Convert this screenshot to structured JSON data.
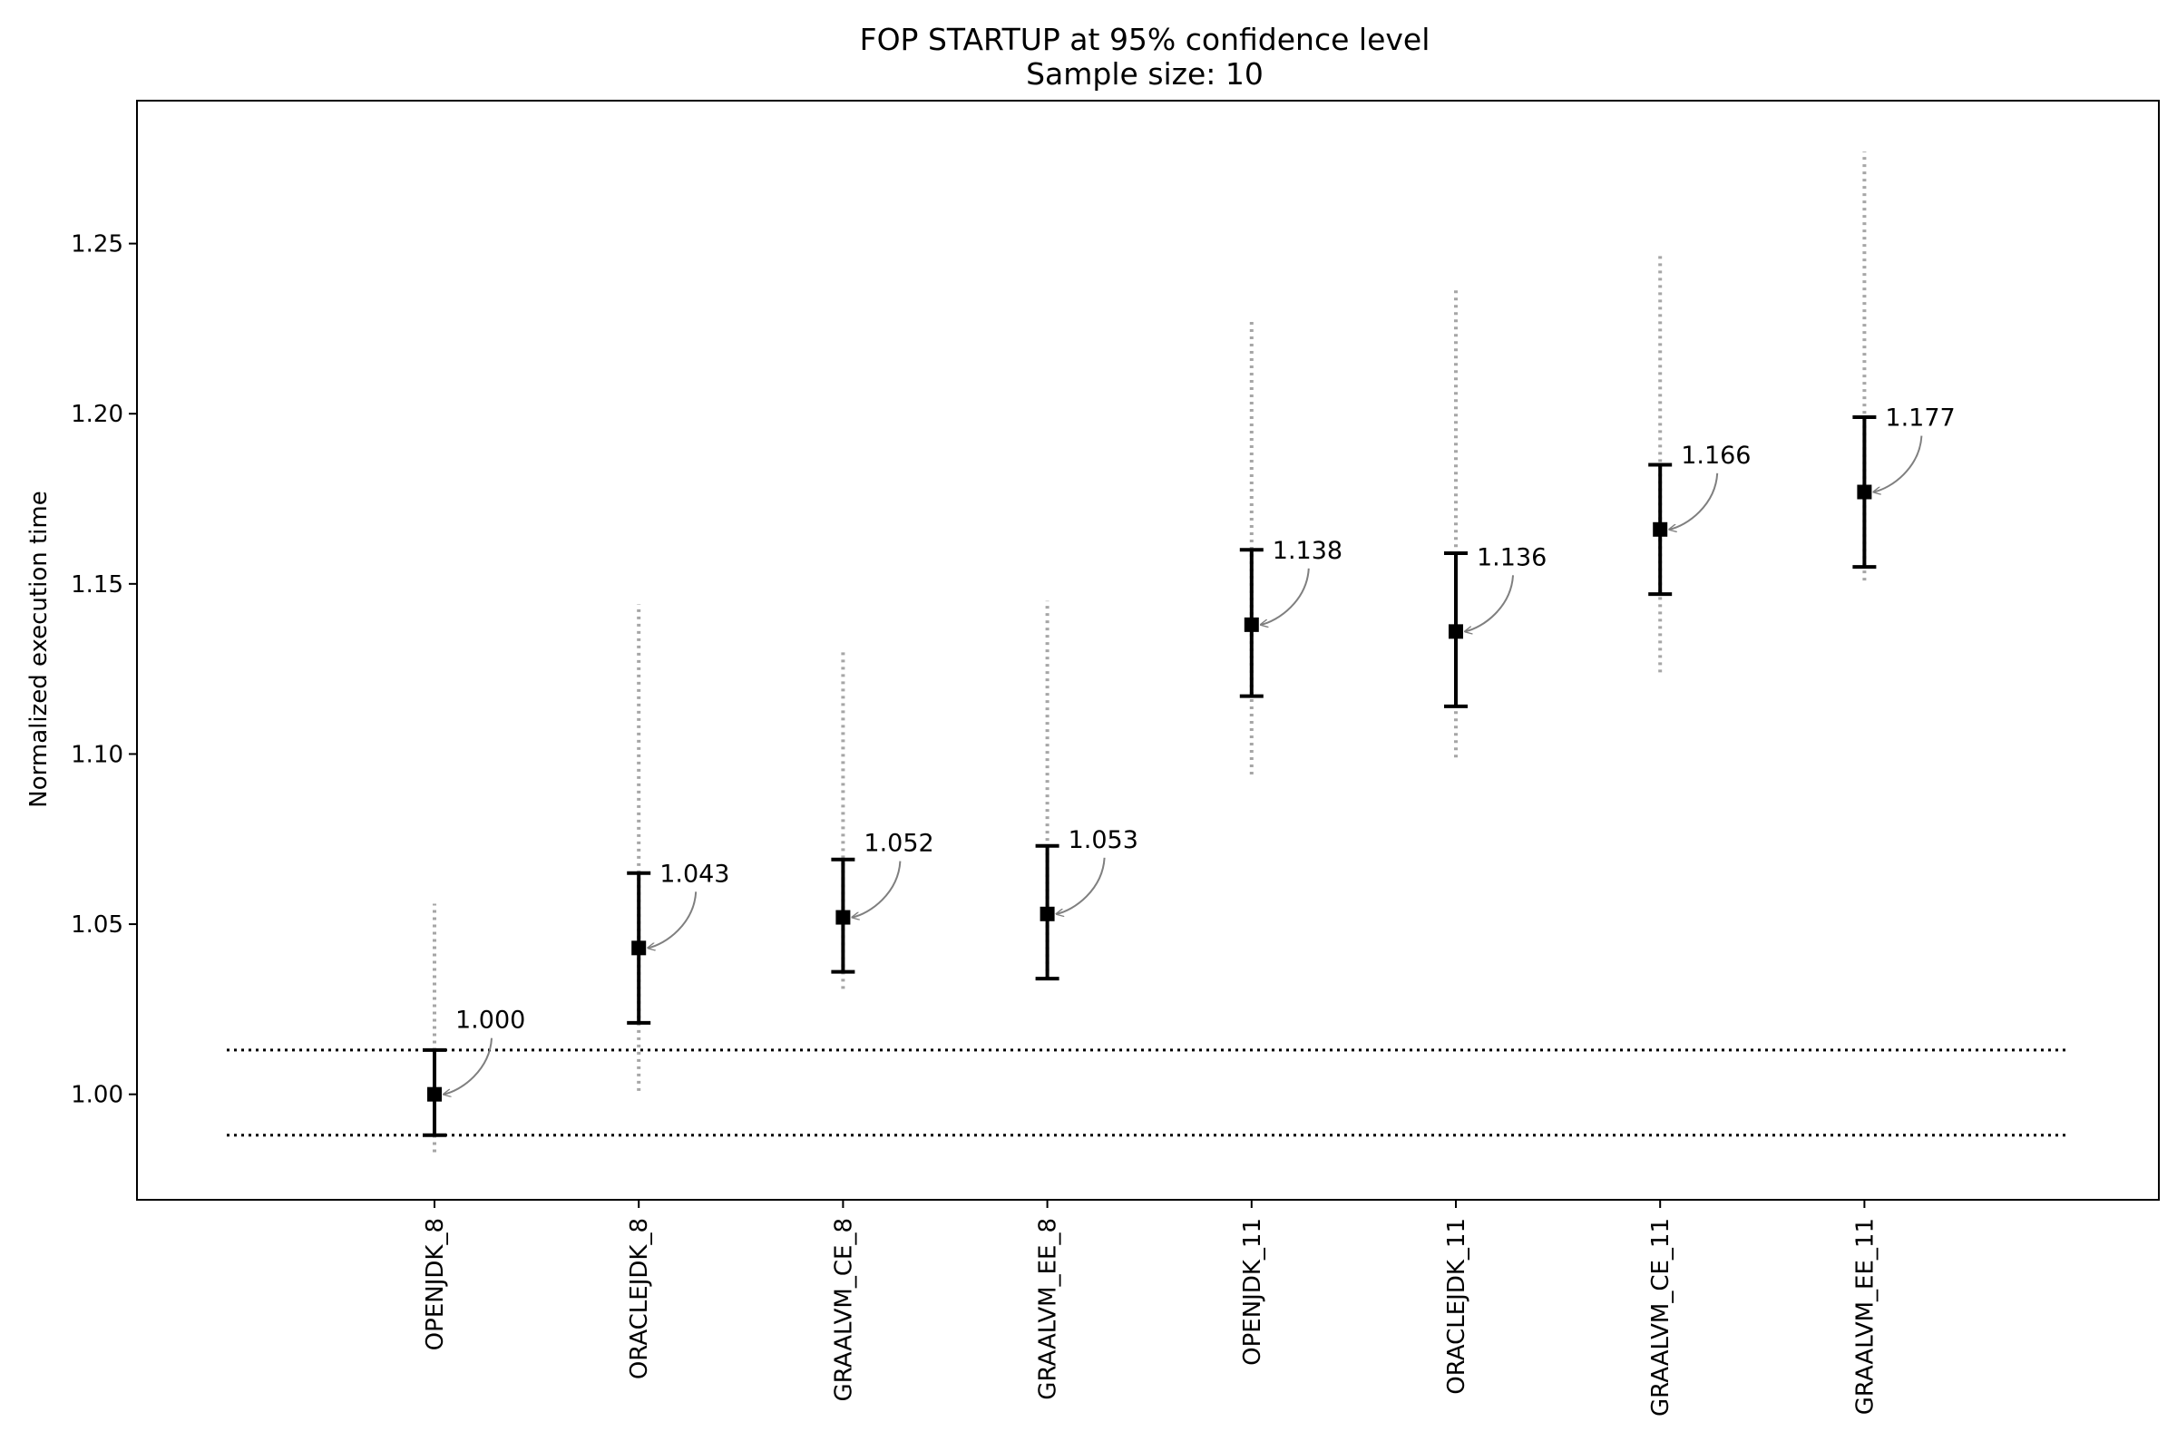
{
  "chart_data": {
    "type": "errorbar",
    "title": "FOP STARTUP at 95% confidence level",
    "subtitle": "Sample size: 10",
    "xlabel": "",
    "ylabel": "Normalized execution time",
    "categories": [
      "OPENJDK_8",
      "ORACLEJDK_8",
      "GRAALVM_CE_8",
      "GRAALVM_EE_8",
      "OPENJDK_11",
      "ORACLEJDK_11",
      "GRAALVM_CE_11",
      "GRAALVM_EE_11"
    ],
    "series": [
      {
        "values": [
          1.0,
          1.043,
          1.052,
          1.053,
          1.138,
          1.136,
          1.166,
          1.177
        ],
        "value_labels": [
          "1.000",
          "1.043",
          "1.052",
          "1.053",
          "1.138",
          "1.136",
          "1.166",
          "1.177"
        ],
        "ci_low": [
          0.988,
          1.021,
          1.036,
          1.034,
          1.117,
          1.114,
          1.147,
          1.155
        ],
        "ci_high": [
          1.013,
          1.065,
          1.069,
          1.073,
          1.16,
          1.159,
          1.185,
          1.199
        ],
        "range_low": [
          0.983,
          1.001,
          1.031,
          1.034,
          1.094,
          1.099,
          1.124,
          1.151
        ],
        "range_high": [
          1.056,
          1.144,
          1.13,
          1.145,
          1.228,
          1.237,
          1.247,
          1.277
        ]
      }
    ],
    "reference_lines": [
      0.988,
      1.013
    ],
    "yticks": [
      "1.00",
      "1.05",
      "1.10",
      "1.15",
      "1.20",
      "1.25"
    ],
    "ylim": [
      0.969,
      1.292
    ],
    "grid": false,
    "colors": {
      "marker": "#000000",
      "errorbar": "#000000",
      "range": "#a6a6a6",
      "reference_line": "#000000",
      "annotation_arrow": "#7f7f7f"
    }
  }
}
